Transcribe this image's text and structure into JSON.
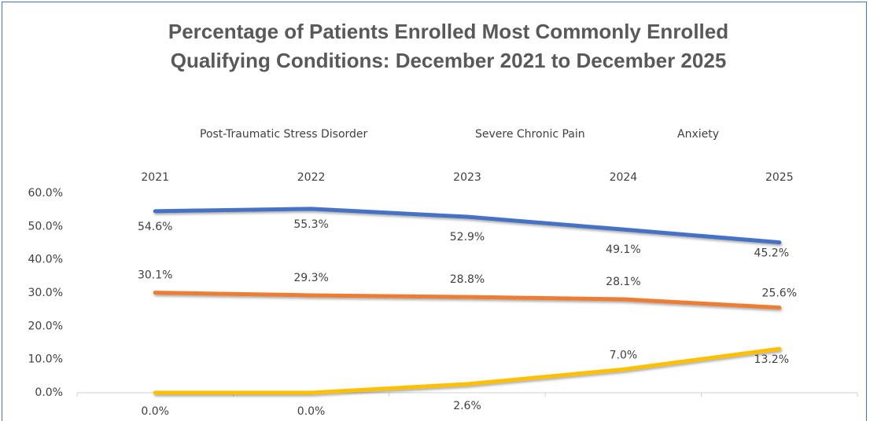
{
  "chart_data": {
    "type": "line",
    "title": "Percentage of Patients Enrolled Most Commonly Enrolled Qualifying Conditions: December 2021 to December 2025",
    "categories": [
      "2021",
      "2022",
      "2023",
      "2024",
      "2025"
    ],
    "series": [
      {
        "name": "Post-Traumatic Stress Disorder",
        "color": "#4472c4",
        "values": [
          54.6,
          55.3,
          52.9,
          49.1,
          45.2
        ],
        "value_labels": [
          "54.6%",
          "55.3%",
          "52.9%",
          "49.1%",
          "45.2%"
        ]
      },
      {
        "name": "Severe Chronic Pain",
        "color": "#ed7d31",
        "values": [
          30.1,
          29.3,
          28.8,
          28.1,
          25.6
        ],
        "value_labels": [
          "30.1%",
          "29.3%",
          "28.8%",
          "28.1%",
          "25.6%"
        ]
      },
      {
        "name": "Anxiety",
        "color": "#ffc000",
        "values": [
          0.0,
          0.0,
          2.6,
          7.0,
          13.2
        ],
        "value_labels": [
          "0.0%",
          "0.0%",
          "2.6%",
          "7.0%",
          "13.2%"
        ]
      }
    ],
    "ylim": [
      0,
      60
    ],
    "yticks": [
      {
        "value": 0,
        "label": "0.0%"
      },
      {
        "value": 10,
        "label": "10.0%"
      },
      {
        "value": 20,
        "label": "20.0%"
      },
      {
        "value": 30,
        "label": "30.0%"
      },
      {
        "value": 40,
        "label": "40.0%"
      },
      {
        "value": 50,
        "label": "50.0%"
      },
      {
        "value": 60,
        "label": "60.0%"
      }
    ],
    "legend": "top"
  }
}
